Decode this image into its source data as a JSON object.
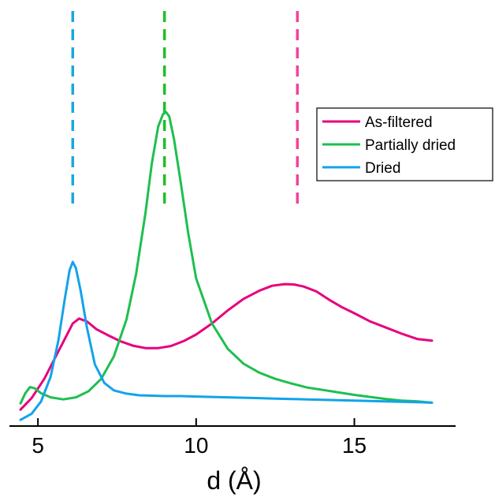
{
  "chart_data": {
    "type": "line",
    "title": "",
    "xlabel": "d (Å)",
    "ylabel": "",
    "xlim": [
      4.1,
      18.2
    ],
    "ylim": [
      0,
      1.0
    ],
    "xticks": [
      5,
      10,
      15
    ],
    "xtick_labels": [
      "5",
      "10",
      "15"
    ],
    "y_axis_visible": false,
    "grid": false,
    "legend": "upper-right",
    "legend_labels": [
      "As-filtered",
      "Partially dried",
      "Dried"
    ],
    "reference_lines": [
      {
        "x": 6.1,
        "color": "#19a7df"
      },
      {
        "x": 9.0,
        "color": "#1ebf2a"
      },
      {
        "x": 13.2,
        "color": "#f0449a"
      }
    ],
    "series": [
      {
        "name": "As-filtered",
        "color": "#e6007e",
        "x": [
          4.45,
          4.8,
          5.2,
          5.6,
          5.9,
          6.1,
          6.3,
          6.55,
          6.85,
          7.2,
          7.6,
          8.0,
          8.4,
          8.8,
          9.2,
          9.6,
          10.0,
          10.5,
          11.0,
          11.5,
          12.0,
          12.4,
          12.8,
          13.1,
          13.4,
          13.8,
          14.2,
          14.6,
          15.0,
          15.5,
          16.0,
          16.5,
          17.0,
          17.45
        ],
        "y": [
          0.04,
          0.068,
          0.115,
          0.175,
          0.22,
          0.25,
          0.262,
          0.255,
          0.236,
          0.222,
          0.207,
          0.196,
          0.19,
          0.19,
          0.195,
          0.207,
          0.223,
          0.25,
          0.282,
          0.31,
          0.33,
          0.342,
          0.346,
          0.345,
          0.34,
          0.328,
          0.308,
          0.29,
          0.275,
          0.255,
          0.24,
          0.225,
          0.212,
          0.208
        ]
      },
      {
        "name": "Partially dried",
        "color": "#1ebf4f",
        "x": [
          4.45,
          4.6,
          4.75,
          4.9,
          5.1,
          5.4,
          5.8,
          6.2,
          6.6,
          7.0,
          7.4,
          7.8,
          8.1,
          8.4,
          8.6,
          8.8,
          8.95,
          9.05,
          9.15,
          9.3,
          9.5,
          9.75,
          10.0,
          10.5,
          11.0,
          11.5,
          12.0,
          12.5,
          13.0,
          13.5,
          14.0,
          14.5,
          15.0,
          15.5,
          16.0,
          16.5,
          17.0,
          17.45
        ],
        "y": [
          0.055,
          0.08,
          0.095,
          0.092,
          0.08,
          0.07,
          0.065,
          0.07,
          0.085,
          0.115,
          0.17,
          0.26,
          0.37,
          0.52,
          0.64,
          0.73,
          0.76,
          0.765,
          0.755,
          0.7,
          0.6,
          0.47,
          0.36,
          0.25,
          0.188,
          0.152,
          0.13,
          0.115,
          0.104,
          0.094,
          0.088,
          0.082,
          0.076,
          0.071,
          0.066,
          0.062,
          0.06,
          0.057
        ]
      },
      {
        "name": "Dried",
        "color": "#13a3ea",
        "x": [
          4.45,
          4.8,
          5.1,
          5.4,
          5.65,
          5.85,
          6.0,
          6.1,
          6.2,
          6.35,
          6.55,
          6.8,
          7.1,
          7.4,
          7.8,
          8.2,
          8.6,
          9.0,
          9.5,
          10.0,
          10.5,
          11.0,
          11.5,
          12.0,
          12.5,
          13.0,
          13.5,
          14.0,
          14.5,
          15.0,
          15.5,
          16.0,
          16.5,
          17.0,
          17.45
        ],
        "y": [
          0.015,
          0.03,
          0.06,
          0.12,
          0.21,
          0.31,
          0.38,
          0.4,
          0.385,
          0.33,
          0.24,
          0.15,
          0.105,
          0.087,
          0.079,
          0.075,
          0.074,
          0.073,
          0.073,
          0.072,
          0.071,
          0.07,
          0.069,
          0.068,
          0.067,
          0.066,
          0.065,
          0.064,
          0.063,
          0.062,
          0.061,
          0.06,
          0.059,
          0.058,
          0.057
        ]
      }
    ]
  }
}
